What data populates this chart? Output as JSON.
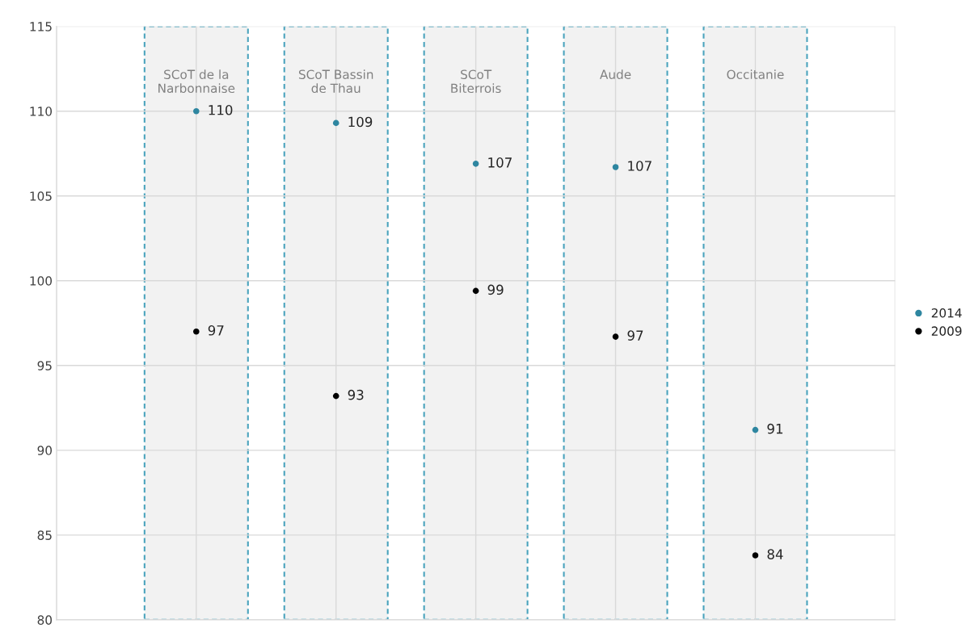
{
  "chart_data": {
    "type": "scatter",
    "categories": [
      null,
      "SCoT de la\nNarbonnaise",
      "SCoT Bassin\nde Thau",
      "SCoT\nBiterrois",
      "Aude",
      "Occitanie",
      null
    ],
    "series": [
      {
        "name": "2014",
        "color": "#2e86a0",
        "values": [
          null,
          110.0,
          109.3,
          106.9,
          106.7,
          91.2,
          null
        ],
        "value_labels": [
          null,
          "110",
          "109",
          "107",
          "107",
          "91",
          null
        ]
      },
      {
        "name": "2009",
        "color": "#000000",
        "values": [
          null,
          97.0,
          93.2,
          99.4,
          96.7,
          83.8,
          null
        ],
        "value_labels": [
          null,
          "97",
          "93",
          "99",
          "97",
          "84",
          null
        ]
      }
    ],
    "ylim": [
      80,
      115
    ],
    "yticks": [
      80,
      85,
      90,
      95,
      100,
      105,
      110,
      115
    ],
    "bands": [
      {
        "axis": "x",
        "from": "SCoT de la\nNarbonnaise",
        "to": "SCoT de la\nNarbonnaise",
        "color": "#f2f2f2"
      },
      {
        "axis": "x",
        "from": "SCoT Bassin\nde Thau",
        "to": "SCoT Bassin\nde Thau",
        "color": "#f2f2f2"
      },
      {
        "axis": "x",
        "from": "SCoT\nBiterrois",
        "to": "SCoT\nBiterrois",
        "color": "#f2f2f2"
      },
      {
        "axis": "x",
        "from": "Aude",
        "to": "Aude",
        "color": "#f2f2f2"
      },
      {
        "axis": "x",
        "from": "Occitanie",
        "to": "Occitanie",
        "color": "#f2f2f2"
      }
    ],
    "grid": true,
    "legend": "right",
    "marker": "circle"
  }
}
